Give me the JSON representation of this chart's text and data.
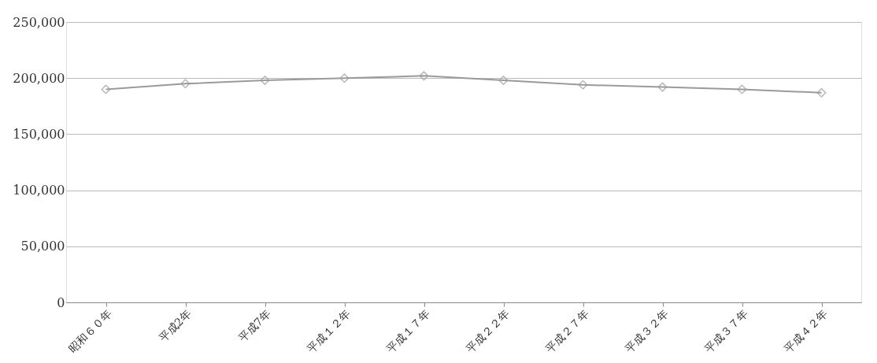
{
  "chart_data": {
    "type": "line",
    "categories": [
      "昭和６０年",
      "平成2年",
      "平成7年",
      "平成１２年",
      "平成１７年",
      "平成２２年",
      "平成２７年",
      "平成３２年",
      "平成３７年",
      "平成４２年"
    ],
    "series": [
      {
        "color": "#9a9a9a",
        "values": [
          190000,
          195000,
          198000,
          200000,
          202000,
          198000,
          194000,
          192000,
          190000,
          187000
        ]
      }
    ],
    "ylim": [
      0,
      250000
    ],
    "yticks": [
      {
        "value": 0,
        "label": "0"
      },
      {
        "value": 50000,
        "label": "50,000"
      },
      {
        "value": 100000,
        "label": "100,000"
      },
      {
        "value": 150000,
        "label": "150,000"
      },
      {
        "value": 200000,
        "label": "200,000"
      },
      {
        "value": 250000,
        "label": "250,000"
      }
    ],
    "grid": "y",
    "marker": "diamond",
    "line_style": "solid"
  }
}
